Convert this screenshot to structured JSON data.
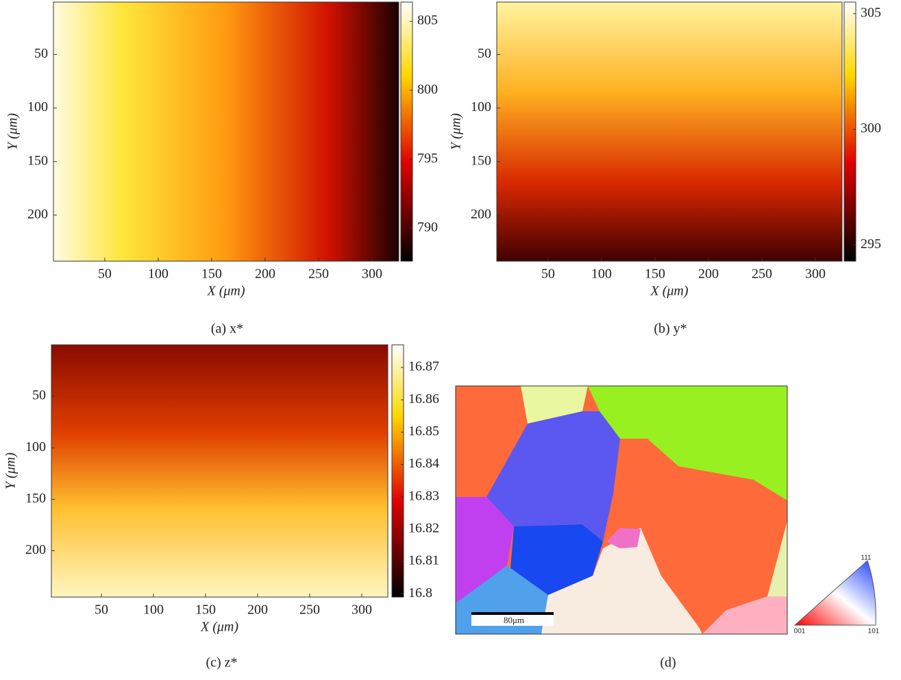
{
  "chart_data": [
    {
      "type": "heatmap",
      "caption": "(a) x*",
      "xlabel": "X (μm)",
      "ylabel": "Y (μm)",
      "xlim": [
        2,
        325
      ],
      "xticks": [
        50,
        100,
        150,
        200,
        250,
        300
      ],
      "ylim": [
        1,
        243
      ],
      "yticks": [
        50,
        100,
        150,
        200
      ],
      "clim": [
        787.6,
        806.4
      ],
      "cticks": [
        790,
        795,
        800,
        805
      ],
      "colormap": "hot"
    },
    {
      "type": "heatmap",
      "caption": "(b) y*",
      "xlabel": "X (μm)",
      "ylabel": "Y (μm)",
      "xlim": [
        2,
        325
      ],
      "xticks": [
        50,
        100,
        150,
        200,
        250,
        300
      ],
      "ylim": [
        1,
        243
      ],
      "yticks": [
        50,
        100,
        150,
        200
      ],
      "clim": [
        294.3,
        305.5
      ],
      "cticks": [
        295,
        300,
        305
      ],
      "colormap": "hot"
    },
    {
      "type": "heatmap",
      "caption": "(c) z*",
      "xlabel": "X (μm)",
      "ylabel": "Y (μm)",
      "xlim": [
        2,
        325
      ],
      "xticks": [
        50,
        100,
        150,
        200,
        250,
        300
      ],
      "ylim": [
        0,
        245
      ],
      "yticks": [
        50,
        100,
        150,
        200
      ],
      "clim": [
        16.799,
        16.877
      ],
      "cticks": [
        16.8,
        16.81,
        16.82,
        16.83,
        16.84,
        16.85,
        16.86,
        16.87
      ],
      "colormap": "hot"
    }
  ],
  "panel_d": {
    "caption": "(d)",
    "scale_bar": "80μm",
    "ipf_labels": [
      "001",
      "111",
      "101"
    ]
  }
}
